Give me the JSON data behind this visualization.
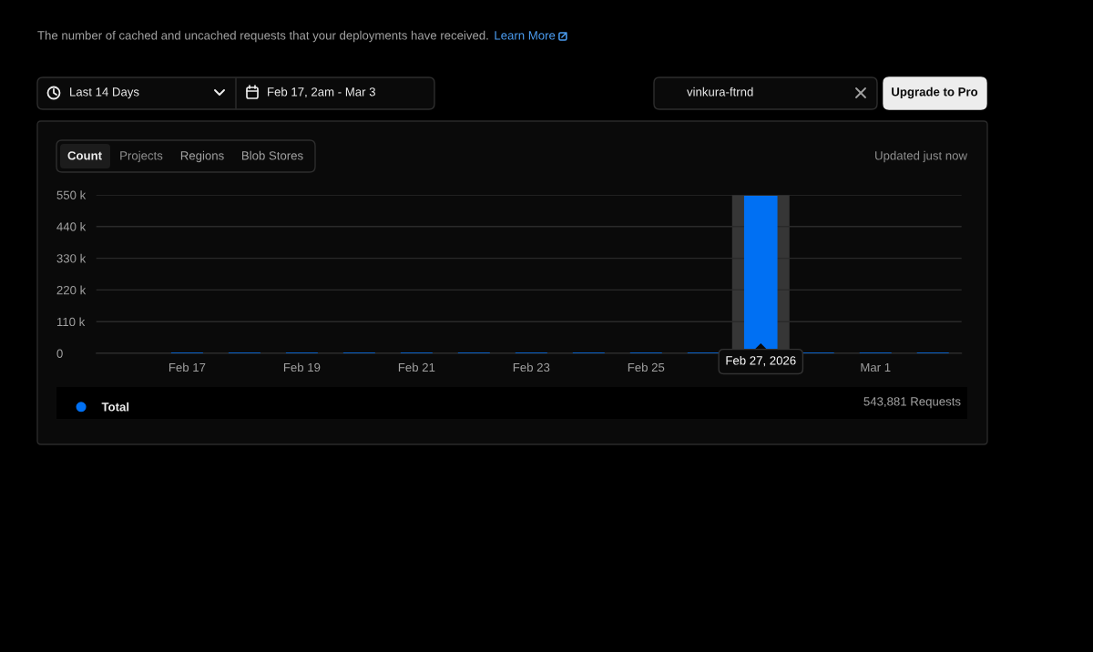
{
  "chart_data": {
    "type": "bar",
    "subtitle": "The number of cached and uncached requests that your deployments have received.",
    "x": [
      "2026-02-17",
      "2026-02-18",
      "2026-02-19",
      "2026-02-20",
      "2026-02-21",
      "2026-02-22",
      "2026-02-23",
      "2026-02-24",
      "2026-02-25",
      "2026-02-26",
      "2026-02-27",
      "2026-02-28",
      "2026-03-01",
      "2026-03-02"
    ],
    "series": [
      {
        "name": "Total",
        "color": "#0070f3",
        "values": [
          0,
          0,
          0,
          0,
          0,
          0,
          0,
          0,
          0,
          0,
          544000,
          0,
          0,
          0
        ]
      }
    ],
    "xlim": [
      "2026-02-15T10:00",
      "2026-03-02T12:00"
    ],
    "xticks": [
      {
        "value": "2026-02-17",
        "label": "Feb 17"
      },
      {
        "value": "2026-02-19",
        "label": "Feb 19"
      },
      {
        "value": "2026-02-21",
        "label": "Feb 21"
      },
      {
        "value": "2026-02-23",
        "label": "Feb 23"
      },
      {
        "value": "2026-02-25",
        "label": "Feb 25"
      },
      {
        "value": "2026-03-01",
        "label": "Mar 1"
      }
    ],
    "ylim": [
      0,
      550000
    ],
    "yticks": [
      0,
      {
        "value": 110000,
        "label": "110 k"
      },
      {
        "value": 220000,
        "label": "220 k"
      },
      {
        "value": 330000,
        "label": "330 k"
      },
      {
        "value": 440000,
        "label": "440 k"
      },
      {
        "value": 550000,
        "label": "550 k"
      }
    ],
    "grid": "y",
    "legend": "bottom",
    "bands": [
      {
        "axis": "x",
        "from": "2026-02-26T12:00",
        "to": "2026-02-27T12:00",
        "color": "#363636"
      }
    ],
    "annotations": [
      "Learn More",
      "Last 14 Days",
      "Feb 17, 2am - Mar 3",
      "vinkura-ftrnd",
      "Upgrade to Pro",
      "Count",
      "Projects",
      "Regions",
      "Blob Stores",
      "Updated just now",
      "543,881 Requests",
      {
        "text": "Feb 27, 2026",
        "x": "2026-02-27",
        "y": 0
      }
    ]
  }
}
